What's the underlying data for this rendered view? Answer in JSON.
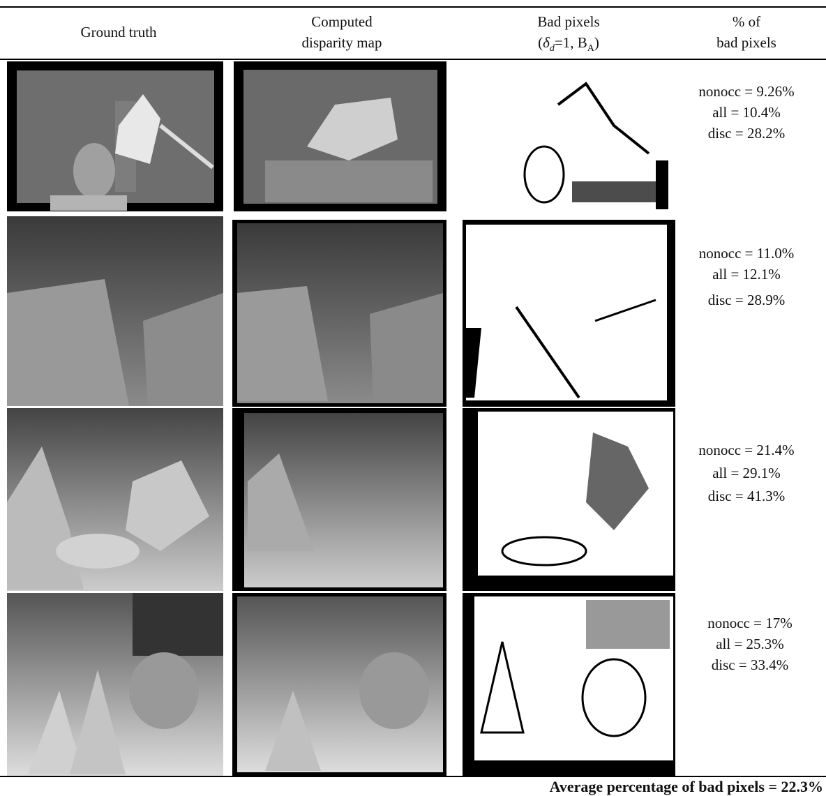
{
  "header": {
    "col0": "Ground truth",
    "col1": [
      "Computed",
      "disparity map"
    ],
    "col2": {
      "line1": "Bad pixels",
      "line2": [
        "(",
        "δ",
        "d",
        "=1, B",
        "A",
        ")"
      ]
    },
    "col3": [
      "% of",
      "bad pixels"
    ]
  },
  "rows": [
    [
      "nonocc = 9.26%",
      "all = 10.4%",
      "disc = 28.2%"
    ],
    [
      "nonocc = 11.0%",
      "all = 12.1%",
      "disc = 28.9%"
    ],
    [
      "nonocc = 21.4%",
      "all = 29.1%",
      "disc = 41.3%"
    ],
    [
      "nonocc = 17%",
      "all = 25.3%",
      "disc = 33.4%"
    ]
  ],
  "footer": "Average percentage of bad pixels = 22.3%"
}
